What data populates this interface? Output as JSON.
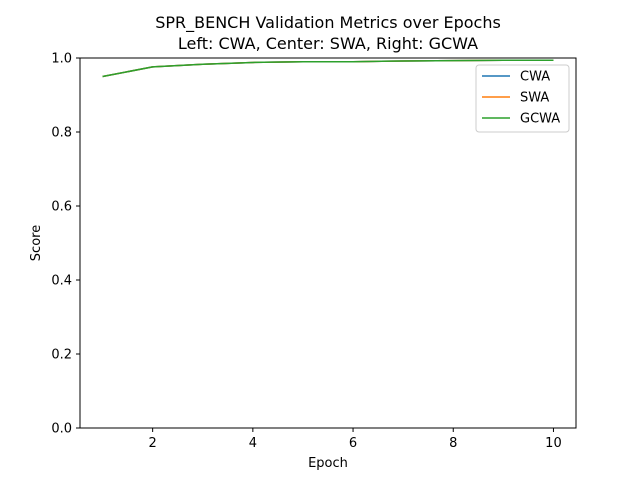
{
  "chart_data": {
    "type": "line",
    "title": "SPR_BENCH Validation Metrics over Epochs",
    "subtitle": "Left: CWA, Center: SWA, Right: GCWA",
    "xlabel": "Epoch",
    "ylabel": "Score",
    "xlim": [
      0.55,
      10.45
    ],
    "ylim": [
      0.0,
      1.0
    ],
    "xticks": [
      2,
      4,
      6,
      8,
      10
    ],
    "yticks": [
      0.0,
      0.2,
      0.4,
      0.6,
      0.8,
      1.0
    ],
    "xtick_labels": [
      "2",
      "4",
      "6",
      "8",
      "10"
    ],
    "ytick_labels": [
      "0.0",
      "0.2",
      "0.4",
      "0.6",
      "0.8",
      "1.0"
    ],
    "grid": false,
    "legend_position": "top-right",
    "x": [
      1,
      2,
      3,
      4,
      5,
      6,
      7,
      8,
      9,
      10
    ],
    "series": [
      {
        "name": "CWA",
        "color": "#1f77b4",
        "values": [
          0.95,
          0.976,
          0.983,
          0.988,
          0.99,
          0.99,
          0.992,
          0.993,
          0.994,
          0.994
        ]
      },
      {
        "name": "SWA",
        "color": "#ff7f0e",
        "values": [
          0.95,
          0.976,
          0.983,
          0.988,
          0.99,
          0.99,
          0.992,
          0.993,
          0.994,
          0.994
        ]
      },
      {
        "name": "GCWA",
        "color": "#2ca02c",
        "values": [
          0.95,
          0.976,
          0.983,
          0.988,
          0.99,
          0.99,
          0.992,
          0.993,
          0.994,
          0.994
        ]
      }
    ]
  }
}
